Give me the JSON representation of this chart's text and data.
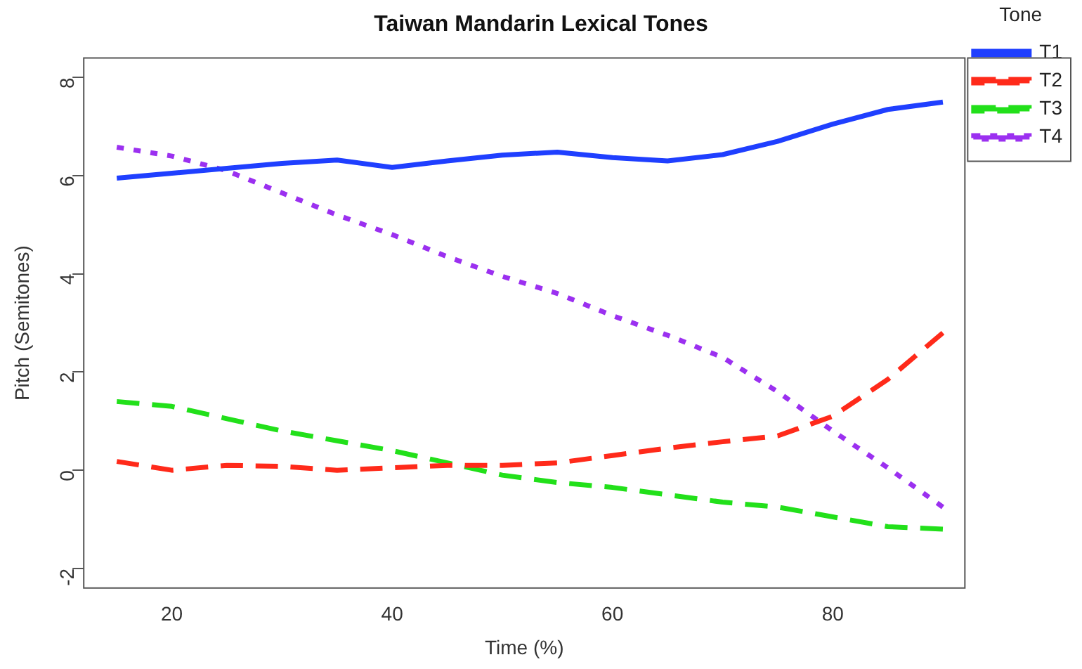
{
  "chart_data": {
    "type": "line",
    "title": "Taiwan Mandarin Lexical Tones",
    "xlabel": "Time (%)",
    "ylabel": "Pitch (Semitones)",
    "legend_title": "Tone",
    "legend": "right",
    "x": [
      15,
      20,
      25,
      30,
      35,
      40,
      45,
      50,
      55,
      60,
      65,
      70,
      75,
      80,
      85,
      90
    ],
    "xlim": [
      12,
      92
    ],
    "xticks": [
      20,
      40,
      60,
      80
    ],
    "ylim": [
      -2.4,
      8.4
    ],
    "yticks": [
      -2,
      0,
      2,
      4,
      6,
      8
    ],
    "grid": false,
    "marker": "none",
    "series": [
      {
        "name": "T1",
        "color": "#1f3fff",
        "line_style": "solid",
        "values": [
          5.95,
          6.05,
          6.15,
          6.25,
          6.32,
          6.17,
          6.3,
          6.42,
          6.48,
          6.37,
          6.3,
          6.43,
          6.7,
          7.05,
          7.35,
          7.5
        ]
      },
      {
        "name": "T2",
        "color": "#ff2a1a",
        "line_style": "dashed",
        "values": [
          0.18,
          0,
          0.1,
          0.08,
          0,
          0.05,
          0.1,
          0.1,
          0.15,
          0.3,
          0.45,
          0.58,
          0.7,
          1.1,
          1.85,
          2.8
        ]
      },
      {
        "name": "T3",
        "color": "#22e01a",
        "line_style": "dashed",
        "values": [
          1.4,
          1.3,
          1.05,
          0.8,
          0.6,
          0.4,
          0.15,
          -0.1,
          -0.25,
          -0.35,
          -0.5,
          -0.65,
          -0.75,
          -0.95,
          -1.15,
          -1.2
        ]
      },
      {
        "name": "T4",
        "color": "#9b30f0",
        "line_style": "dotted",
        "values": [
          6.58,
          6.4,
          6.1,
          5.65,
          5.2,
          4.8,
          4.35,
          3.95,
          3.6,
          3.15,
          2.75,
          2.3,
          1.6,
          0.8,
          0.05,
          -0.75
        ]
      }
    ]
  }
}
